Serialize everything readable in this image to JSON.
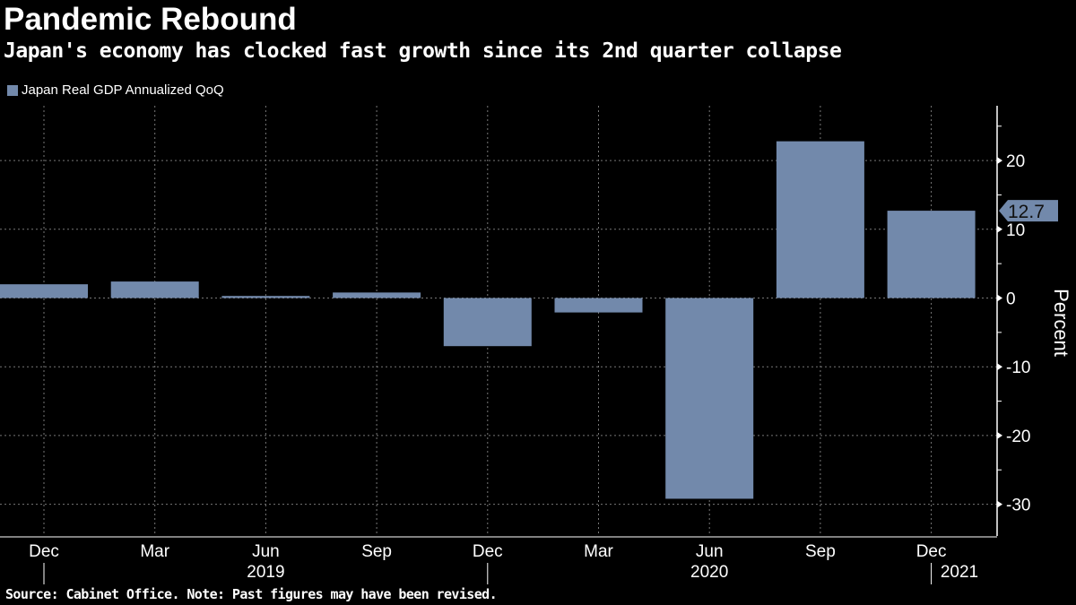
{
  "title": "Pandemic Rebound",
  "subtitle": "Japan's economy has clocked fast growth since its 2nd quarter collapse",
  "source": "Source: Cabinet Office. Note: Past figures may have been revised.",
  "colors": {
    "bar": "#7289ab",
    "background": "#000000"
  },
  "chart_data": {
    "type": "bar",
    "categories": [
      "Dec",
      "Mar",
      "Jun",
      "Sep",
      "Dec",
      "Mar",
      "Jun",
      "Sep",
      "Dec"
    ],
    "year_labels": [
      {
        "label": "2019",
        "category_index": 2
      },
      {
        "label": "2020",
        "category_index": 6
      },
      {
        "label": "2021",
        "category_index": 8
      }
    ],
    "series": [
      {
        "name": "Japan Real GDP Annualized QoQ",
        "values": [
          2.0,
          2.4,
          0.3,
          0.8,
          -7.0,
          -2.1,
          -29.2,
          22.8,
          12.7
        ]
      }
    ],
    "ylabel": "Percent",
    "ylim": [
      -34,
      28
    ],
    "yticks": [
      -30,
      -20,
      -10,
      0,
      10,
      20
    ],
    "last_value_label": "12.7",
    "grid": true,
    "legend": "top-left",
    "y_axis_side": "right"
  }
}
